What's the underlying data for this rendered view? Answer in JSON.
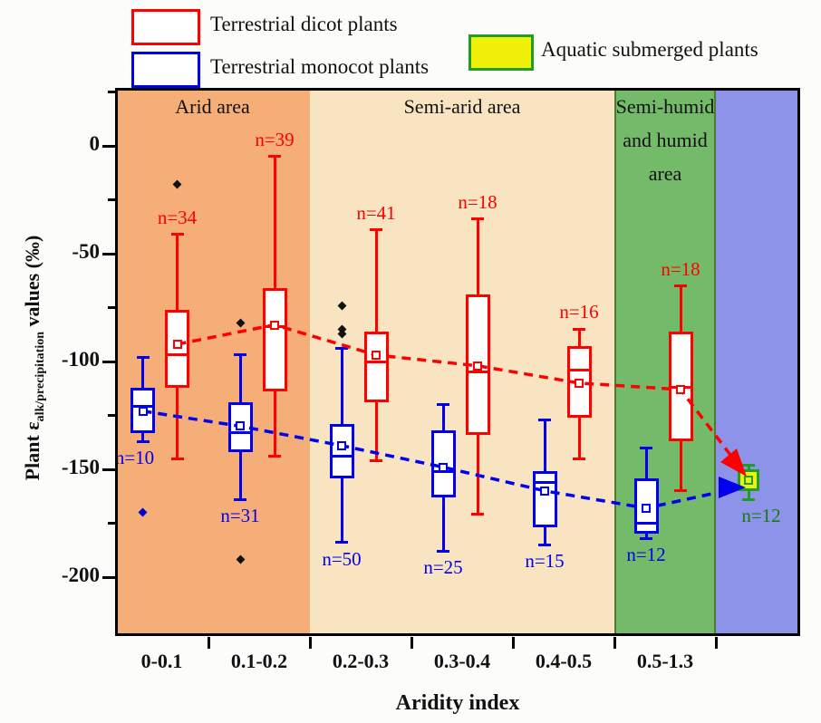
{
  "legend": {
    "dicot_label": "Terrestrial dicot plants",
    "monocot_label": "Terrestrial monocot plants",
    "aquatic_label": "Aquatic submerged plants",
    "dicot_color": "#ff0000",
    "monocot_color": "#0000ee",
    "aquatic_fill": "#f0f00a",
    "aquatic_border": "#1f9e1f"
  },
  "axes": {
    "y": {
      "title_prefix": "Plant ε",
      "title_subscript": "alk/precipitation",
      "title_suffix": " values (‰)",
      "major_ticks": [
        {
          "value": 0,
          "label": "0"
        },
        {
          "value": -50,
          "label": "-50"
        },
        {
          "value": -100,
          "label": "-100"
        },
        {
          "value": -150,
          "label": "-150"
        },
        {
          "value": -200,
          "label": "-200"
        }
      ],
      "minor_ticks": [
        25,
        -25,
        -75,
        -125,
        -175
      ]
    },
    "x": {
      "title": "Aridity index",
      "categories": [
        "0-0.1",
        "0.1-0.2",
        "0.2-0.3",
        "0.3-0.4",
        "0.4-0.5",
        "0.5-1.3"
      ]
    }
  },
  "regions": [
    {
      "name": "arid",
      "label_lines": [
        "Arid area"
      ],
      "color": "#f6ae78",
      "span": [
        0,
        2
      ]
    },
    {
      "name": "semi-arid",
      "label_lines": [
        "Semi-arid area"
      ],
      "color": "#f8e4c1",
      "span": [
        2,
        5
      ]
    },
    {
      "name": "semi-humid-humid",
      "label_lines": [
        "Semi-humid",
        "and humid",
        "area"
      ],
      "color": "#74bb69",
      "edge_color": "#4e7a33",
      "span": [
        5,
        6
      ]
    },
    {
      "name": "aquatic-zone",
      "label_lines": [],
      "color": "#8d93e9",
      "span": [
        6,
        7
      ]
    }
  ],
  "chart_data": {
    "type": "box",
    "title": "",
    "xlabel": "Aridity index",
    "ylabel": "Plant e_alk/precipitation values (permil)",
    "ylim": [
      -227,
      27
    ],
    "categories": [
      "0-0.1",
      "0.1-0.2",
      "0.2-0.3",
      "0.3-0.4",
      "0.4-0.5",
      "0.5-1.3"
    ],
    "series": [
      {
        "name": "Terrestrial dicot plants",
        "color": "#ff0000",
        "label_color": "#ff0000",
        "boxes": [
          {
            "category": "0-0.1",
            "n": 34,
            "n_label": "n=34",
            "whisker_high": -41,
            "box_high": -76,
            "mean": -92,
            "median": -97,
            "box_low": -112,
            "whisker_low": -145,
            "outliers": [
              -18
            ]
          },
          {
            "category": "0.1-0.2",
            "n": 39,
            "n_label": "n=39",
            "whisker_high": -5,
            "box_high": -66,
            "mean": -83,
            "median": -84,
            "box_low": -114,
            "whisker_low": -144,
            "outliers": []
          },
          {
            "category": "0.2-0.3",
            "n": 41,
            "n_label": "n=41",
            "whisker_high": -39,
            "box_high": -86,
            "mean": -97,
            "median": -100,
            "box_low": -119,
            "whisker_low": -146,
            "outliers": []
          },
          {
            "category": "0.3-0.4",
            "n": 18,
            "n_label": "n=18",
            "whisker_high": -34,
            "box_high": -69,
            "mean": -102,
            "median": -105,
            "box_low": -134,
            "whisker_low": -171,
            "outliers": []
          },
          {
            "category": "0.4-0.5",
            "n": 16,
            "n_label": "n=16",
            "whisker_high": -85,
            "box_high": -93,
            "mean": -110,
            "median": -104,
            "box_low": -126,
            "whisker_low": -145,
            "outliers": []
          },
          {
            "category": "0.5-1.3",
            "n": 18,
            "n_label": "n=18",
            "whisker_high": -65,
            "box_high": -86,
            "mean": -113,
            "median": -112,
            "box_low": -137,
            "whisker_low": -160,
            "outliers": []
          }
        ]
      },
      {
        "name": "Terrestrial monocot plants",
        "color": "#0000ee",
        "label_color": "#0000ee",
        "boxes": [
          {
            "category": "0-0.1",
            "n": 10,
            "n_label": "n=10",
            "whisker_high": -98,
            "box_high": -112,
            "mean": -123,
            "median": -121,
            "box_low": -133,
            "whisker_low": -137,
            "outliers": [
              -170
            ],
            "outlier_color": "#0000cc",
            "label_dx": -9
          },
          {
            "category": "0.1-0.2",
            "n": 31,
            "n_label": "n=31",
            "whisker_high": -97,
            "box_high": -119,
            "mean": -130,
            "median": -133,
            "box_low": -142,
            "whisker_low": -164,
            "outliers": [
              -82,
              -192
            ]
          },
          {
            "category": "0.2-0.3",
            "n": 50,
            "n_label": "n=50",
            "whisker_high": -94,
            "box_high": -129,
            "mean": -139,
            "median": -144,
            "box_low": -154,
            "whisker_low": -184,
            "outliers": [
              -74,
              -85,
              -87
            ]
          },
          {
            "category": "0.3-0.4",
            "n": 25,
            "n_label": "n=25",
            "whisker_high": -120,
            "box_high": -132,
            "mean": -149,
            "median": -151,
            "box_low": -163,
            "whisker_low": -188,
            "outliers": []
          },
          {
            "category": "0.4-0.5",
            "n": 15,
            "n_label": "n=15",
            "whisker_high": -127,
            "box_high": -151,
            "mean": -160,
            "median": -156,
            "box_low": -177,
            "whisker_low": -185,
            "outliers": []
          },
          {
            "category": "0.5-1.3",
            "n": 12,
            "n_label": "n=12",
            "whisker_high": -140,
            "box_high": -154,
            "mean": -168,
            "median": -175,
            "box_low": -180,
            "whisker_low": -182,
            "outliers": []
          }
        ]
      },
      {
        "name": "Aquatic submerged plants",
        "color": "#1f9e1f",
        "fill": "#f0f00a",
        "label_color": "#157a15",
        "boxes": [
          {
            "category": "aquatic",
            "n": 12,
            "n_label": "n=12",
            "whisker_high": -148,
            "box_high": -150,
            "mean": -155,
            "median": null,
            "box_low": -160,
            "whisker_low": -164,
            "outliers": [],
            "label_dx": 14
          }
        ]
      }
    ],
    "trend_lines": [
      {
        "name": "dicot-mean-trend",
        "color": "#ff0000",
        "series_index": 0
      },
      {
        "name": "monocot-mean-trend",
        "color": "#0000ee",
        "series_index": 1
      }
    ]
  }
}
